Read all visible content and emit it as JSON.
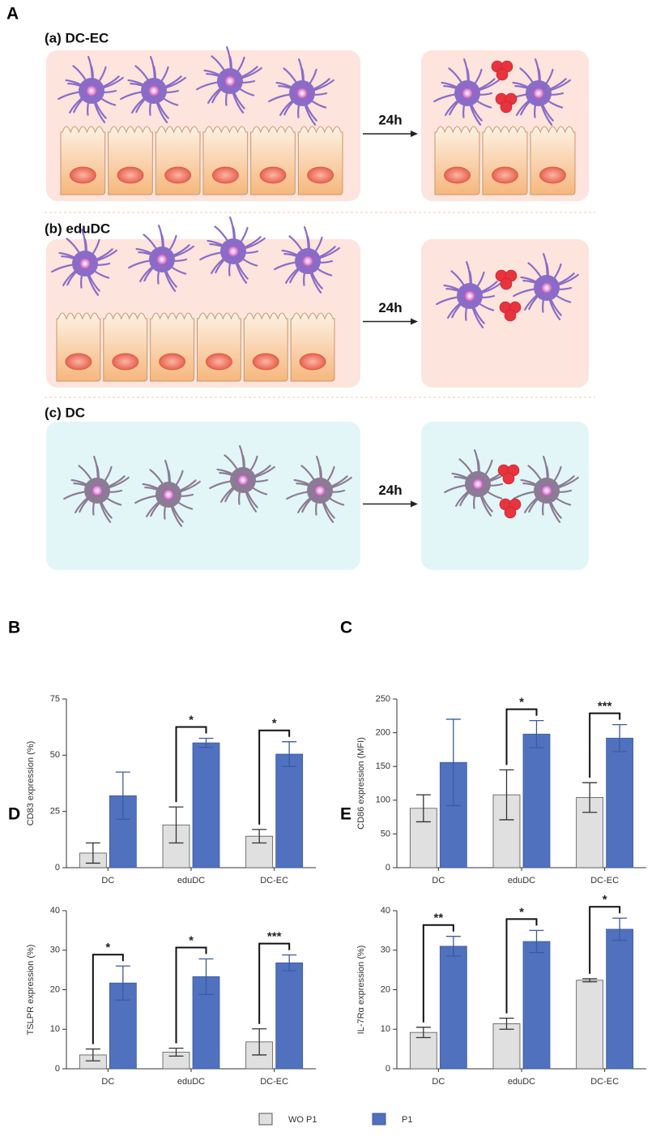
{
  "panel_a": {
    "label": "A",
    "sections": [
      {
        "label": "(a) DC-EC",
        "time": "24h"
      },
      {
        "label": "(b) eduDC",
        "time": "24h"
      },
      {
        "label": "(c) DC",
        "time": "24h"
      }
    ]
  },
  "chart_data": [
    {
      "type": "bar",
      "panel": "B",
      "ylabel": "CD83 expression (%)",
      "categories": [
        "DC",
        "eduDC",
        "DC-EC"
      ],
      "series": [
        {
          "name": "WO P1",
          "color": "#e0e0e0",
          "values": [
            6.5,
            19,
            14
          ],
          "errors": [
            4.5,
            8,
            3
          ]
        },
        {
          "name": "P1",
          "color": "#4f71be",
          "values": [
            32,
            55.5,
            50.5
          ],
          "errors": [
            10.5,
            2,
            5.5
          ]
        }
      ],
      "significance": [
        null,
        "*",
        "*"
      ],
      "ylim": [
        0,
        75
      ],
      "yticks": [
        0,
        25,
        50,
        75
      ]
    },
    {
      "type": "bar",
      "panel": "C",
      "ylabel": "CD86 expression (MFI)",
      "categories": [
        "DC",
        "eduDC",
        "DC-EC"
      ],
      "series": [
        {
          "color": "#e0e0e0",
          "values": [
            88,
            108,
            104
          ],
          "errors": [
            20,
            37,
            22
          ]
        },
        {
          "color": "#4f71be",
          "values": [
            156,
            198,
            192
          ],
          "errors": [
            64,
            20,
            20
          ]
        }
      ],
      "significance": [
        null,
        "*",
        "***"
      ],
      "ylim": [
        0,
        250
      ],
      "yticks": [
        0,
        50,
        100,
        150,
        200,
        250
      ]
    },
    {
      "type": "bar",
      "panel": "D",
      "ylabel": "TSLPR expression (%)",
      "categories": [
        "DC",
        "eduDC",
        "DC-EC"
      ],
      "series": [
        {
          "color": "#e0e0e0",
          "values": [
            3.5,
            4.2,
            6.8
          ],
          "errors": [
            1.5,
            1,
            3.3
          ]
        },
        {
          "color": "#4f71be",
          "values": [
            21.7,
            23.3,
            26.8
          ],
          "errors": [
            4.3,
            4.5,
            2
          ]
        }
      ],
      "significance": [
        "*",
        "*",
        "***"
      ],
      "ylim": [
        0,
        40
      ],
      "yticks": [
        0,
        10,
        20,
        30,
        40
      ]
    },
    {
      "type": "bar",
      "panel": "E",
      "ylabel": "IL-7Rα expression (%)",
      "categories": [
        "DC",
        "eduDC",
        "DC-EC"
      ],
      "series": [
        {
          "color": "#e0e0e0",
          "values": [
            9.2,
            11.4,
            22.4
          ],
          "errors": [
            1.3,
            1.4,
            0.4
          ]
        },
        {
          "color": "#4f71be",
          "values": [
            31,
            32.2,
            35.3
          ],
          "errors": [
            2.5,
            2.8,
            2.8
          ]
        }
      ],
      "significance": [
        "**",
        "*",
        "*"
      ],
      "ylim": [
        0,
        40
      ],
      "yticks": [
        0,
        10,
        20,
        30,
        40
      ]
    }
  ]
}
